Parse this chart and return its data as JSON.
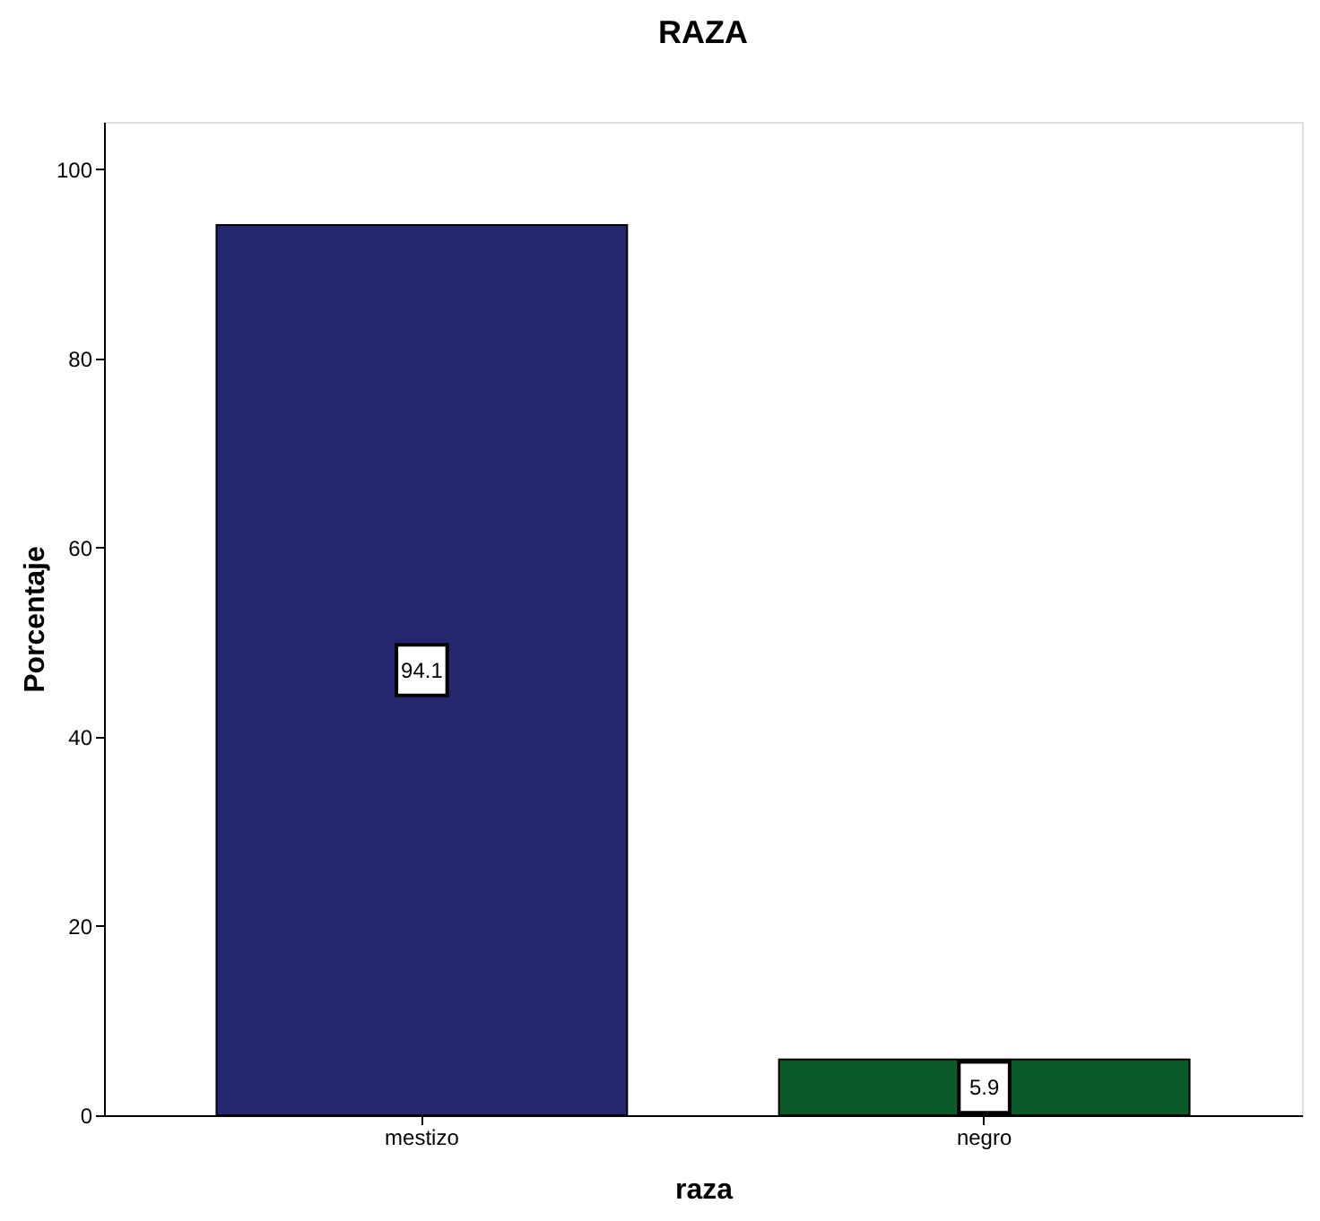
{
  "chart_data": {
    "type": "bar",
    "title": "RAZA",
    "xlabel": "raza",
    "ylabel": "Porcentaje",
    "categories": [
      "mestizo",
      "negro"
    ],
    "values": [
      94.1,
      5.9
    ],
    "colors": [
      "#26286f",
      "#0b5a2a"
    ],
    "ylim": [
      0,
      105
    ],
    "yticks": [
      0,
      20,
      40,
      60,
      80,
      100
    ],
    "grid": false,
    "data_labels": true
  }
}
